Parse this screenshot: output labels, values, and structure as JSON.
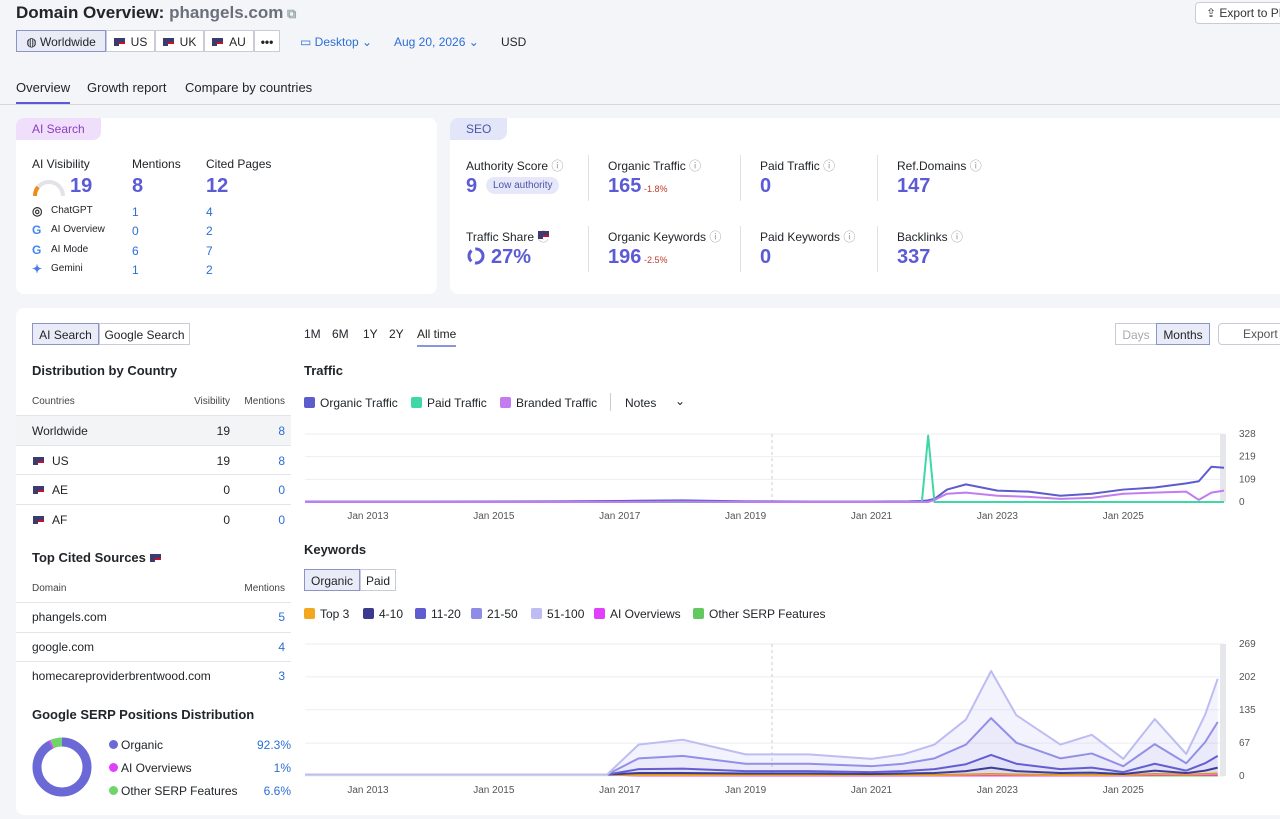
{
  "header": {
    "title": "Domain Overview:",
    "domain": "phangels.com",
    "export": "Export to PDF",
    "locations": [
      "Worldwide",
      "US",
      "UK",
      "AU"
    ],
    "device": "Desktop",
    "date": "Aug 20, 2026",
    "currency": "USD"
  },
  "tabs": [
    "Overview",
    "Growth report",
    "Compare by countries"
  ],
  "ai_card": {
    "badge": "AI Search",
    "metrics": [
      {
        "label": "AI Visibility",
        "value": 19
      },
      {
        "label": "Mentions",
        "value": 8
      },
      {
        "label": "Cited Pages",
        "value": 12
      }
    ],
    "rows": [
      {
        "name": "ChatGPT",
        "mentions": 1,
        "pages": 4
      },
      {
        "name": "AI Overview",
        "mentions": 0,
        "pages": 2
      },
      {
        "name": "AI Mode",
        "mentions": 6,
        "pages": 7
      },
      {
        "name": "Gemini",
        "mentions": 1,
        "pages": 2
      }
    ]
  },
  "seo_card": {
    "badge": "SEO",
    "metrics": [
      {
        "label": "Authority Score",
        "value": 9,
        "note": "Low authority"
      },
      {
        "label": "Organic Traffic",
        "value": 165,
        "change": "-1.8%"
      },
      {
        "label": "Paid Traffic",
        "value": 0
      },
      {
        "label": "Ref.Domains",
        "value": 147
      },
      {
        "label": "Traffic Share",
        "value": "27%"
      },
      {
        "label": "Organic Keywords",
        "value": 196,
        "change": "-2.5%"
      },
      {
        "label": "Paid Keywords",
        "value": 0
      },
      {
        "label": "Backlinks",
        "value": 337
      }
    ]
  },
  "left_panel": {
    "toggle": [
      "AI Search",
      "Google Search"
    ],
    "country_title": "Distribution by Country",
    "country_headers": [
      "Countries",
      "Visibility",
      "Mentions"
    ],
    "countries": [
      [
        "Worldwide",
        19,
        8
      ],
      [
        "US",
        19,
        8
      ],
      [
        "AE",
        0,
        0
      ],
      [
        "AF",
        0,
        0
      ]
    ],
    "sources_title": "Top Cited Sources",
    "sources_headers": [
      "Domain",
      "Mentions"
    ],
    "sources": [
      [
        "phangels.com",
        5
      ],
      [
        "google.com",
        4
      ],
      [
        "homecareproviderbrentwood.com",
        3
      ]
    ],
    "serp": {
      "type": "pie",
      "title": "Google SERP Positions Distribution",
      "categories": [
        "Organic",
        "AI Overviews",
        "Other SERP Features"
      ],
      "values": [
        92.3,
        1,
        6.6
      ],
      "value_labels": [
        "92.3%",
        "1%",
        "6.6%"
      ],
      "colors": [
        "#6b69d6",
        "#e040fb",
        "#6fd46b"
      ]
    }
  },
  "right_panel": {
    "periods": [
      "1M",
      "6M",
      "1Y",
      "2Y",
      "All time"
    ],
    "views": [
      "Days",
      "Months"
    ],
    "export": "Export",
    "traffic": {
      "type": "line",
      "title": "Traffic",
      "notes": "Notes",
      "x": [
        2012,
        2014,
        2016,
        2017,
        2018,
        2019,
        2020,
        2021,
        2021.6,
        2021.8,
        2021.9,
        2022,
        2022.2,
        2022.5,
        2023,
        2023.5,
        2024,
        2024.5,
        2025,
        2025.5,
        2026,
        2026.2,
        2026.4,
        2026.6
      ],
      "xlim": [
        2012,
        2026.6
      ],
      "xticks": [
        {
          "value": 2013,
          "label": "Jan 2013"
        },
        {
          "value": 2015,
          "label": "Jan 2015"
        },
        {
          "value": 2017,
          "label": "Jan 2017"
        },
        {
          "value": 2019,
          "label": "Jan 2019"
        },
        {
          "value": 2021,
          "label": "Jan 2021"
        },
        {
          "value": 2023,
          "label": "Jan 2023"
        },
        {
          "value": 2025,
          "label": "Jan 2025"
        }
      ],
      "ylim": [
        0,
        328
      ],
      "yticks": [
        0,
        109,
        219,
        328
      ],
      "series": [
        {
          "name": "Organic Traffic",
          "color": "#5c5ccc",
          "values": [
            2,
            2,
            3,
            5,
            8,
            3,
            2,
            2,
            3,
            5,
            8,
            15,
            60,
            85,
            55,
            50,
            30,
            40,
            60,
            70,
            90,
            100,
            170,
            165
          ]
        },
        {
          "name": "Paid Traffic",
          "color": "#3fd6a8",
          "values": [
            0,
            0,
            0,
            0,
            0,
            0,
            0,
            0,
            0,
            0,
            320,
            0,
            0,
            0,
            0,
            0,
            0,
            0,
            0,
            0,
            0,
            0,
            0,
            0
          ]
        },
        {
          "name": "Branded Traffic",
          "color": "#c27cf0",
          "values": [
            0,
            0,
            0,
            0,
            2,
            0,
            0,
            0,
            0,
            0,
            0,
            10,
            40,
            45,
            30,
            25,
            15,
            20,
            40,
            45,
            50,
            10,
            45,
            55
          ]
        }
      ]
    },
    "keywords": {
      "type": "area",
      "title": "Keywords",
      "toggle": [
        "Organic",
        "Paid"
      ],
      "x": [
        2012,
        2013,
        2014,
        2015,
        2016,
        2016.8,
        2017.3,
        2018,
        2019,
        2020,
        2021,
        2021.5,
        2022,
        2022.5,
        2022.9,
        2023.3,
        2024,
        2024.5,
        2025,
        2025.5,
        2026,
        2026.3,
        2026.5
      ],
      "xlim": [
        2012,
        2026.6
      ],
      "xticks": [
        {
          "value": 2013,
          "label": "Jan 2013"
        },
        {
          "value": 2015,
          "label": "Jan 2015"
        },
        {
          "value": 2017,
          "label": "Jan 2017"
        },
        {
          "value": 2019,
          "label": "Jan 2019"
        },
        {
          "value": 2021,
          "label": "Jan 2021"
        },
        {
          "value": 2023,
          "label": "Jan 2023"
        },
        {
          "value": 2025,
          "label": "Jan 2025"
        }
      ],
      "ylim": [
        0,
        269
      ],
      "yticks": [
        0,
        67,
        135,
        202,
        269
      ],
      "series": [
        {
          "name": "Top 3",
          "color": "#f2a81d",
          "values": [
            0,
            0,
            0,
            0,
            0,
            0,
            1,
            1,
            1,
            1,
            1,
            1,
            1,
            2,
            3,
            2,
            1,
            1,
            1,
            2,
            1,
            2,
            3
          ]
        },
        {
          "name": "4-10",
          "color": "#3c3a8f",
          "values": [
            0,
            0,
            0,
            0,
            0,
            0,
            4,
            4,
            3,
            3,
            2,
            3,
            4,
            7,
            13,
            7,
            4,
            5,
            2,
            7,
            3,
            7,
            12
          ]
        },
        {
          "name": "11-20",
          "color": "#5f5bd0",
          "values": [
            0,
            0,
            0,
            0,
            0,
            0,
            8,
            9,
            5,
            5,
            4,
            5,
            8,
            14,
            26,
            15,
            8,
            10,
            4,
            14,
            5,
            15,
            24
          ]
        },
        {
          "name": "21-50",
          "color": "#8e8ce6",
          "values": [
            0,
            0,
            0,
            0,
            0,
            0,
            22,
            26,
            15,
            15,
            12,
            15,
            22,
            40,
            75,
            43,
            22,
            29,
            12,
            40,
            15,
            43,
            69
          ]
        },
        {
          "name": "51-100",
          "color": "#bdbcf3",
          "values": [
            0,
            0,
            0,
            0,
            0,
            0,
            28,
            33,
            19,
            19,
            15,
            19,
            28,
            51,
            96,
            56,
            28,
            38,
            15,
            51,
            19,
            56,
            88
          ]
        },
        {
          "name": "AI Overviews",
          "color": "#e040fb",
          "values": [
            0,
            0,
            0,
            0,
            0,
            0,
            0,
            0,
            0,
            0,
            0,
            0,
            0,
            0,
            0,
            0,
            0,
            0,
            0,
            1,
            1,
            1,
            1
          ]
        },
        {
          "name": "Other SERP Features",
          "color": "#63c95f",
          "values": [
            3,
            3,
            3,
            3,
            3,
            3,
            1,
            1,
            1,
            1,
            1,
            1,
            1,
            1,
            1,
            1,
            1,
            1,
            1,
            1,
            1,
            1,
            1
          ]
        }
      ]
    }
  }
}
